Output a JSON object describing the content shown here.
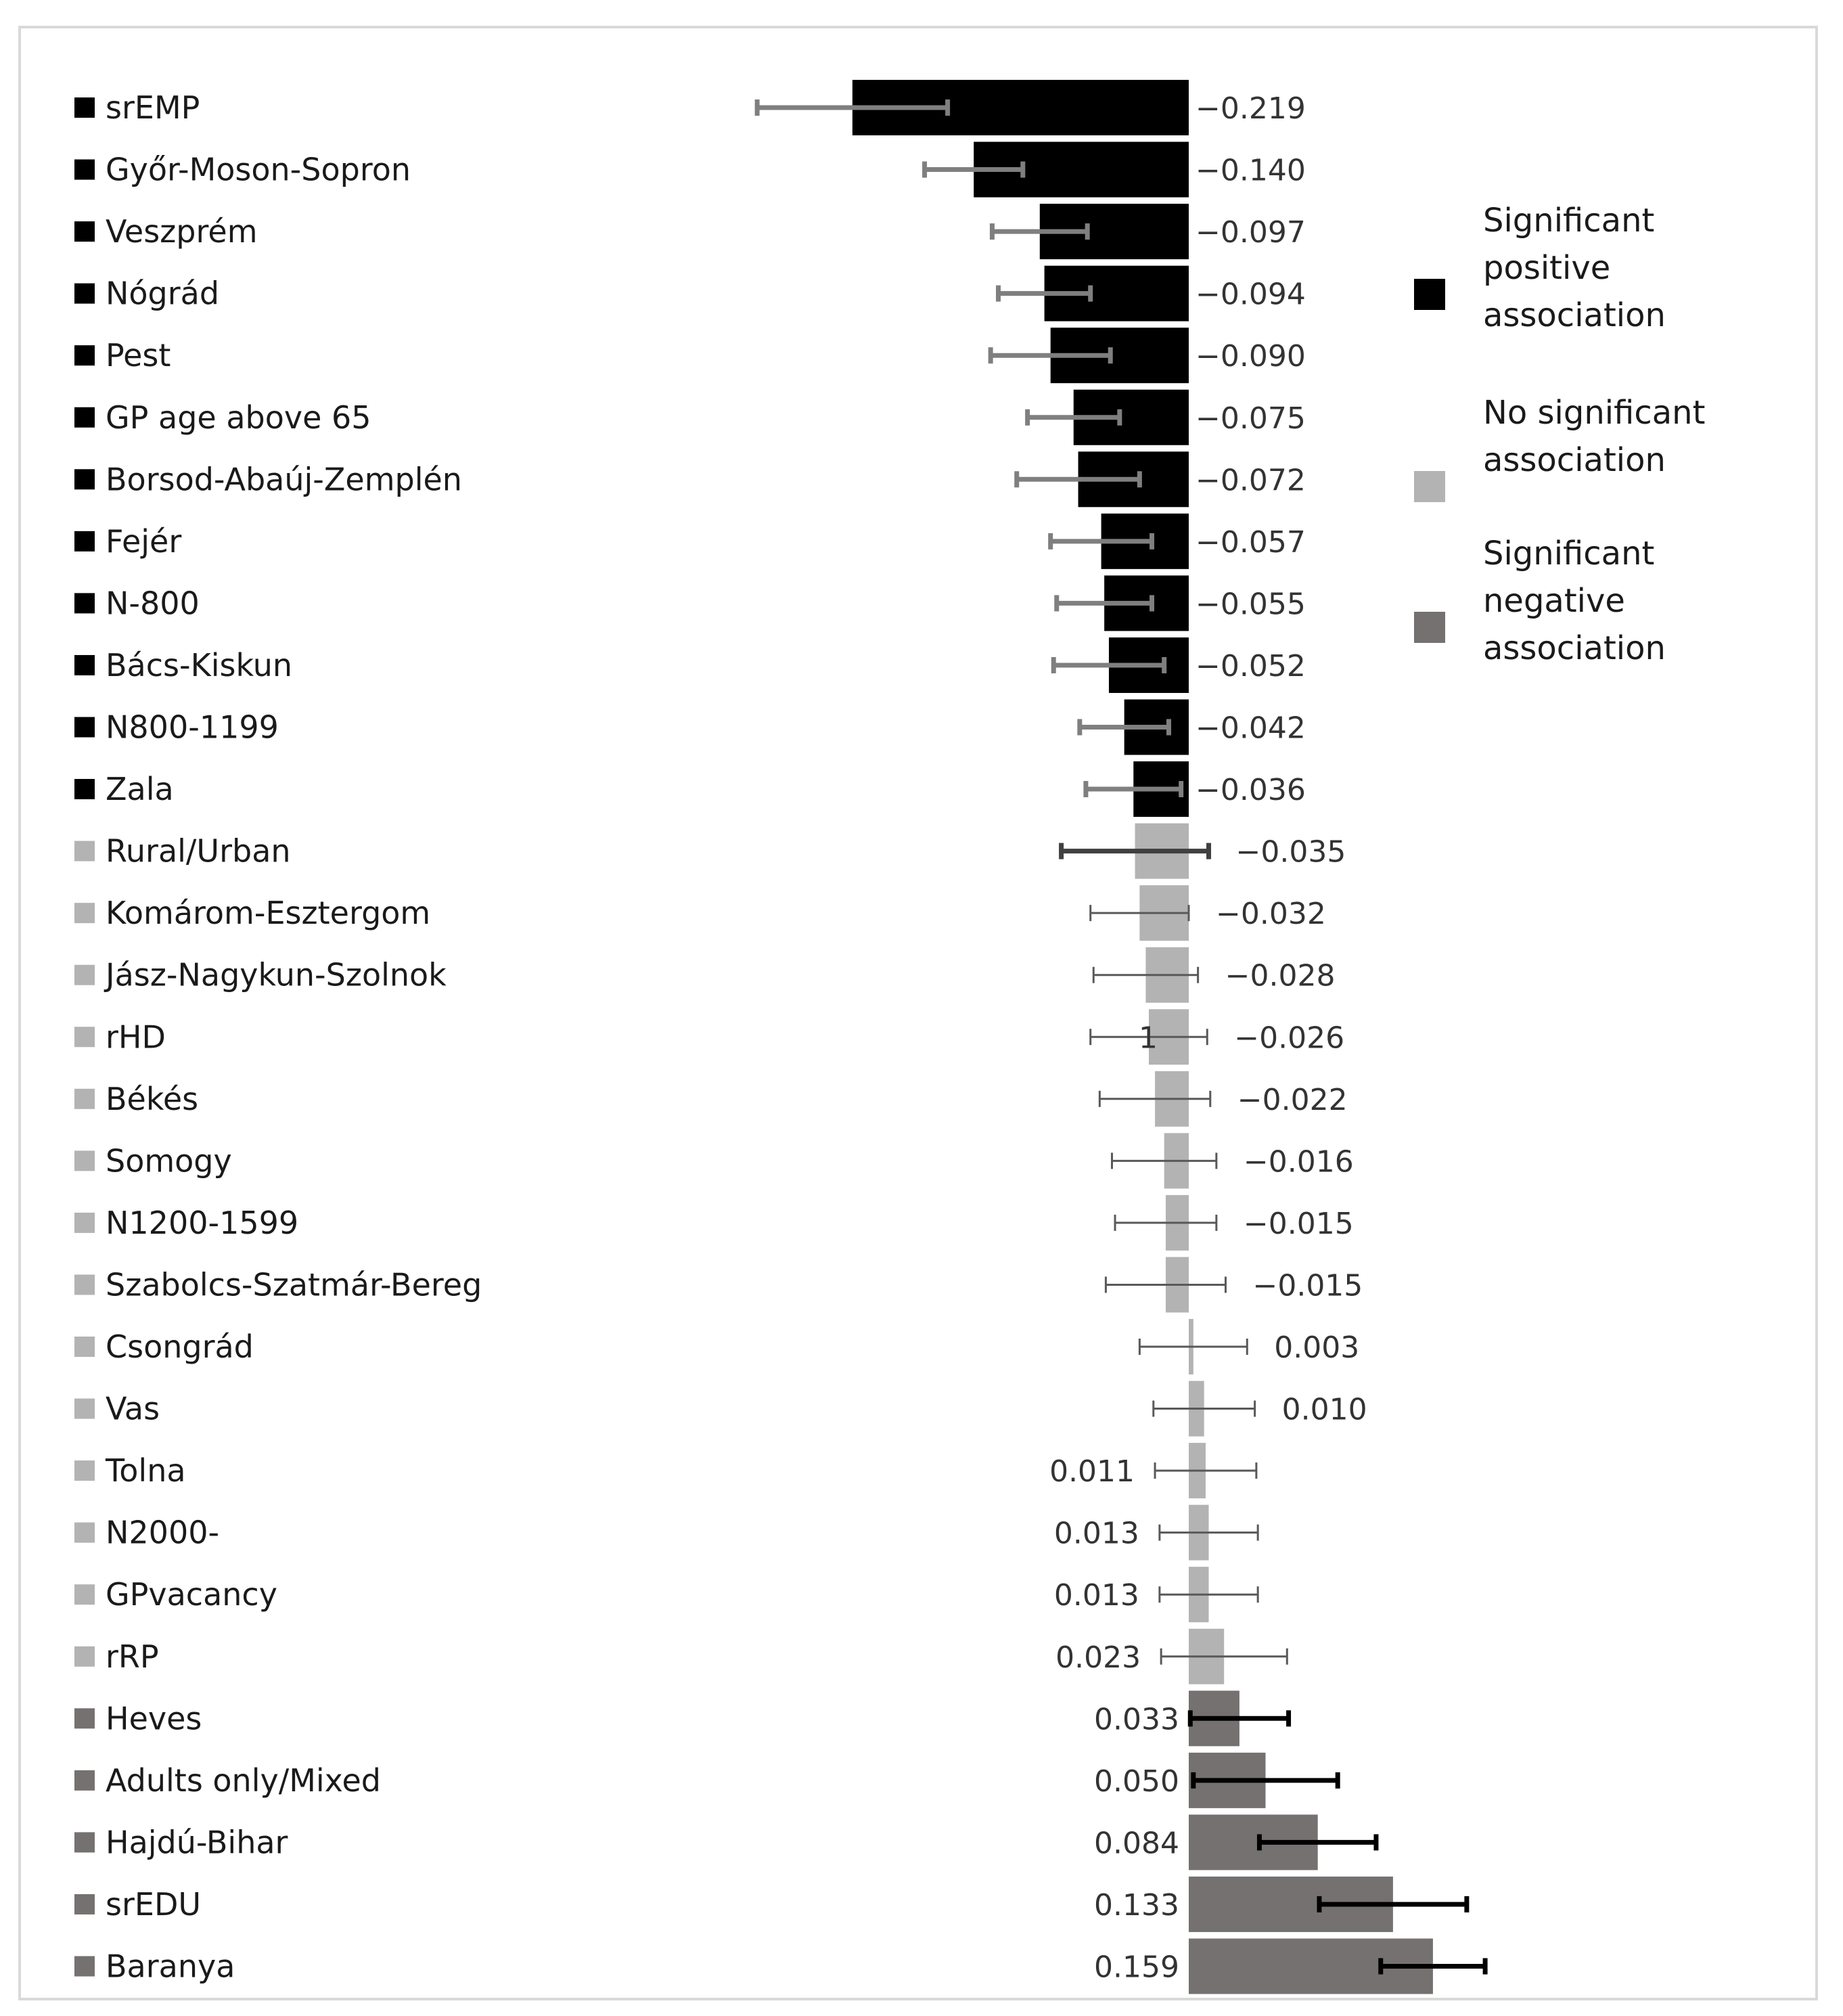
{
  "chart_data": {
    "type": "bar",
    "orientation": "horizontal",
    "categories": [
      "srEMP",
      "Győr-Moson-Sopron",
      "Veszprém",
      "Nógrád",
      "Pest",
      "GP age above 65",
      "Borsod-Abaúj-Zemplén",
      "Fejér",
      "N-800",
      "Bács-Kiskun",
      "N800-1199",
      "Zala",
      "Rural/Urban",
      "Komárom-Esztergom",
      "Jász-Nagykun-Szolnok",
      "rHD",
      "Békés",
      "Somogy",
      "N1200-1599",
      "Szabolcs-Szatmár-Bereg",
      "Csongrád",
      "Vas",
      "Tolna",
      "N2000-",
      "GPvacancy",
      "rRP",
      "Heves",
      "Adults only/Mixed",
      "Hajdú-Bihar",
      "srEDU",
      "Baranya"
    ],
    "values": [
      -0.219,
      -0.14,
      -0.097,
      -0.094,
      -0.09,
      -0.075,
      -0.072,
      -0.057,
      -0.055,
      -0.052,
      -0.042,
      -0.036,
      -0.035,
      -0.032,
      -0.028,
      -0.026,
      -0.022,
      -0.016,
      -0.015,
      -0.015,
      0.003,
      0.01,
      0.011,
      0.013,
      0.013,
      0.023,
      0.033,
      0.05,
      0.084,
      0.133,
      0.159
    ],
    "value_labels": [
      "−0.219",
      "−0.140",
      "−0.097",
      "−0.094",
      "−0.090",
      "−0.075",
      "−0.072",
      "−0.057",
      "−0.055",
      "−0.052",
      "−0.042",
      "−0.036",
      "−0.035",
      "−0.032",
      "−0.028",
      "−0.026",
      "−0.022",
      "−0.016",
      "−0.015",
      "−0.015",
      "0.003",
      "0.010",
      "0.011",
      "0.013",
      "0.013",
      "0.023",
      "0.033",
      "0.050",
      "0.084",
      "0.133",
      "0.159"
    ],
    "ci_low": [
      -0.281,
      -0.172,
      -0.128,
      -0.124,
      -0.129,
      -0.105,
      -0.112,
      -0.09,
      -0.086,
      -0.088,
      -0.071,
      -0.067,
      -0.083,
      -0.064,
      -0.062,
      -0.064,
      -0.058,
      -0.05,
      -0.048,
      -0.054,
      -0.032,
      -0.023,
      -0.022,
      -0.019,
      -0.019,
      -0.018,
      0.001,
      0.003,
      0.046,
      0.085,
      0.125
    ],
    "ci_high": [
      -0.157,
      -0.108,
      -0.066,
      -0.064,
      -0.051,
      -0.045,
      -0.032,
      -0.024,
      -0.024,
      -0.016,
      -0.013,
      -0.005,
      0.013,
      0.0,
      0.006,
      0.012,
      0.014,
      0.018,
      0.018,
      0.024,
      0.038,
      0.043,
      0.044,
      0.045,
      0.045,
      0.064,
      0.065,
      0.097,
      0.122,
      0.181,
      0.193
    ],
    "group": [
      "pos",
      "pos",
      "pos",
      "pos",
      "pos",
      "pos",
      "pos",
      "pos",
      "pos",
      "pos",
      "pos",
      "pos",
      "none",
      "none",
      "none",
      "none",
      "none",
      "none",
      "none",
      "none",
      "none",
      "none",
      "none",
      "none",
      "none",
      "none",
      "neg",
      "neg",
      "neg",
      "neg",
      "neg"
    ],
    "colors": {
      "pos": "#000000",
      "none": "#b3b3b3",
      "neg": "#767171",
      "err_pos": "#7f7f7f",
      "err_none": "#595959",
      "err_neg": "#000000",
      "err_rural": "#404040"
    },
    "stray_label": "1",
    "legend": [
      {
        "key": "pos",
        "lines": [
          "Significant",
          "positive",
          "association"
        ]
      },
      {
        "key": "none",
        "lines": [
          "No significant",
          "association"
        ]
      },
      {
        "key": "neg",
        "lines": [
          "Significant",
          "negative",
          "association"
        ]
      }
    ]
  }
}
